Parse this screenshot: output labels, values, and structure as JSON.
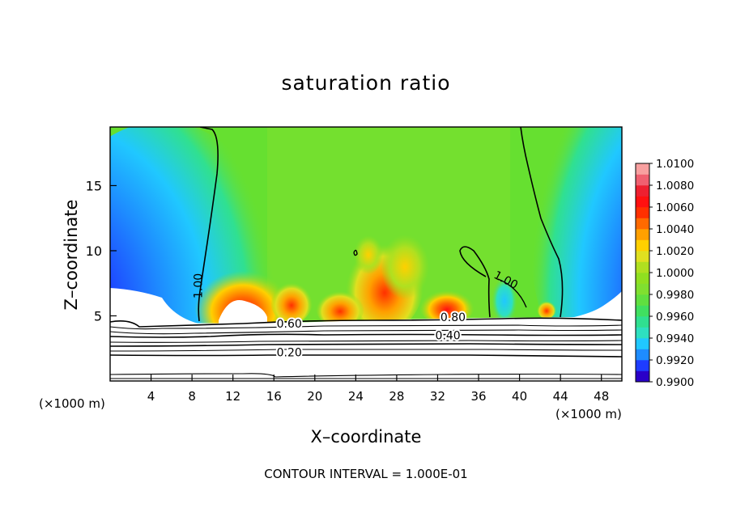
{
  "chart_data": {
    "type": "heatmap",
    "title": "saturation ratio",
    "xlabel": "X–coordinate",
    "ylabel": "Z–coordinate",
    "x_unit_left": "(×1000 m)",
    "x_unit_right": "(×1000 m)",
    "footnote": "CONTOUR INTERVAL = 1.000E-01",
    "xlim": [
      0,
      50
    ],
    "ylim": [
      0,
      19.5
    ],
    "x_ticks": [
      4,
      8,
      12,
      16,
      20,
      24,
      28,
      32,
      36,
      40,
      44,
      48
    ],
    "y_ticks": [
      5,
      10,
      15
    ],
    "colorbar": {
      "min": 0.99,
      "max": 1.01,
      "step": 0.001,
      "tick_labels": [
        "0.9900",
        "0.9920",
        "0.9940",
        "0.9960",
        "0.9980",
        "1.0000",
        "1.0020",
        "1.0040",
        "1.0060",
        "1.0080",
        "1.0100"
      ],
      "colors": [
        "#6a0dad",
        "#2a00c8",
        "#1e3cff",
        "#1e8cff",
        "#20c8ff",
        "#2ee0c0",
        "#30e090",
        "#40e060",
        "#60e040",
        "#80e030",
        "#90e020",
        "#b0e020",
        "#e0e020",
        "#ffd000",
        "#ffa000",
        "#ff6a00",
        "#ff3000",
        "#ff1010",
        "#ee2030",
        "#f06070",
        "#f8a0a0"
      ]
    },
    "contour_labels": [
      {
        "label": "1.00",
        "x": 9.0,
        "z": 7.3
      },
      {
        "label": "1.00",
        "x": 38.5,
        "z": 7.5
      },
      {
        "label": "0.80",
        "x": 33.5,
        "z": 4.6
      },
      {
        "label": "0.60",
        "x": 17.5,
        "z": 4.1
      },
      {
        "label": "0.40",
        "x": 33.0,
        "z": 3.2
      },
      {
        "label": "0.20",
        "x": 17.5,
        "z": 1.9
      }
    ]
  }
}
